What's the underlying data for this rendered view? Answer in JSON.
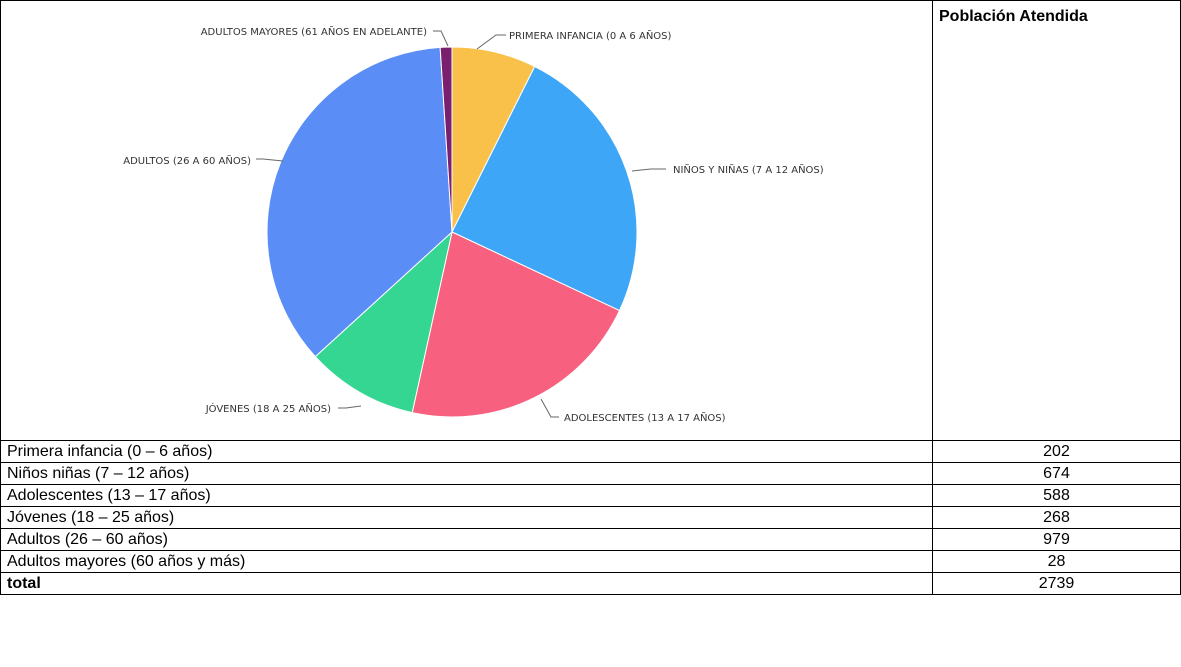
{
  "chart_data": {
    "type": "pie",
    "categories": [
      "PRIMERA INFANCIA (0 A 6 AÑOS)",
      "NIÑOS Y NIÑAS (7 A 12 AÑOS)",
      "ADOLESCENTES (13 A 17 AÑOS)",
      "JÓVENES (18 A 25 AÑOS)",
      "ADULTOS (26 A 60 AÑOS)",
      "ADULTOS MAYORES (61 AÑOS EN ADELANTE)"
    ],
    "values": [
      202,
      674,
      588,
      268,
      979,
      28
    ],
    "colors": [
      "#F9C14A",
      "#3EA6F7",
      "#F7607E",
      "#35D692",
      "#5B8DF6",
      "#7A1E6E"
    ]
  },
  "table": {
    "header": "Población Atendida",
    "rows": [
      {
        "label": "Primera infancia (0 – 6 años)",
        "value": "202"
      },
      {
        "label": "Niños niñas (7 – 12 años)",
        "value": "674"
      },
      {
        "label": "Adolescentes (13 – 17 años)",
        "value": "588"
      },
      {
        "label": "Jóvenes (18 – 25 años)",
        "value": "268"
      },
      {
        "label": "Adultos (26 – 60 años)",
        "value": "979"
      },
      {
        "label": "Adultos mayores (60 años y más)",
        "value": "28"
      }
    ],
    "total_label": "total",
    "total_value": "2739"
  }
}
